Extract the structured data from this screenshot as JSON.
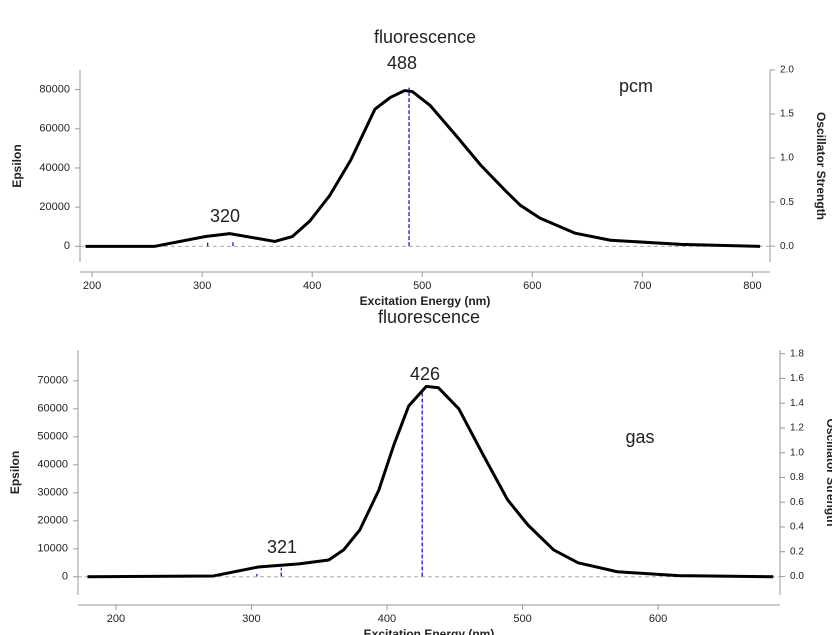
{
  "chart_data": [
    {
      "type": "line",
      "title": "fluorescence",
      "xlabel": "Excitation Energy (nm)",
      "ylabel": "Epsilon",
      "y2label": "Oscillator Strength",
      "annotations": [
        "320",
        "488",
        "pcm"
      ],
      "xlim": [
        189,
        816
      ],
      "xticks": [
        200,
        300,
        400,
        500,
        600,
        700,
        800
      ],
      "ylim": [
        -8000,
        90000
      ],
      "yticks": [
        0,
        20000,
        40000,
        60000,
        80000
      ],
      "y2lim": [
        -0.18,
        2.0
      ],
      "y2ticks": [
        {
          "value": 0,
          "label": "0.0"
        },
        0.5,
        {
          "value": 1,
          "label": "1.0"
        },
        1.5,
        {
          "value": 2,
          "label": "2.0"
        }
      ],
      "series": [
        {
          "color": "#000000",
          "x": [
            194,
            257,
            303,
            325,
            366,
            382,
            398,
            416,
            435,
            457,
            471,
            484,
            491,
            507,
            530,
            553,
            575,
            589,
            607,
            639,
            671,
            735,
            807
          ],
          "values": [
            0,
            0,
            5000,
            6500,
            2500,
            5000,
            13000,
            26000,
            44000,
            70000,
            76000,
            79500,
            79000,
            72000,
            57000,
            41500,
            28700,
            21000,
            14400,
            6700,
            3100,
            1000,
            0
          ]
        },
        {
          "type": "stem",
          "axis": "y2",
          "color": "#1a1acc",
          "x": [
            305,
            328,
            488
          ],
          "values": [
            0.04,
            0.05,
            1.8
          ]
        }
      ]
    },
    {
      "type": "line",
      "title": "fluorescence",
      "xlabel": "Excitation Energy (nm)",
      "ylabel": "Epsilon",
      "y2label": "Oscillator Strength",
      "annotations": [
        "321",
        "426",
        "gas"
      ],
      "xlim": [
        172,
        690
      ],
      "xticks": [
        200,
        300,
        400,
        500,
        600
      ],
      "ylim": [
        -6500,
        81000
      ],
      "yticks": [
        0,
        10000,
        20000,
        30000,
        40000,
        50000,
        60000,
        70000
      ],
      "y2lim": [
        -0.15,
        1.83
      ],
      "y2ticks": [
        {
          "value": 0,
          "label": "0.0"
        },
        0.2,
        0.4,
        0.6,
        0.8,
        {
          "value": 1,
          "label": "1.0"
        },
        1.2,
        1.4,
        1.6,
        1.8
      ],
      "series": [
        {
          "color": "#000000",
          "x": [
            179,
            272,
            305,
            335,
            357,
            368,
            380,
            394,
            405,
            416,
            429,
            438,
            453,
            471,
            489,
            504,
            523,
            541,
            570,
            615,
            685
          ],
          "values": [
            0,
            300,
            3500,
            4600,
            6000,
            9600,
            16800,
            31000,
            47000,
            61000,
            68000,
            67500,
            60000,
            43500,
            27500,
            18500,
            9600,
            5000,
            1800,
            400,
            0
          ]
        },
        {
          "type": "stem",
          "axis": "y2",
          "color": "#1a1acc",
          "x": [
            304,
            322,
            426
          ],
          "values": [
            0.02,
            0.07,
            1.49
          ]
        }
      ]
    }
  ]
}
